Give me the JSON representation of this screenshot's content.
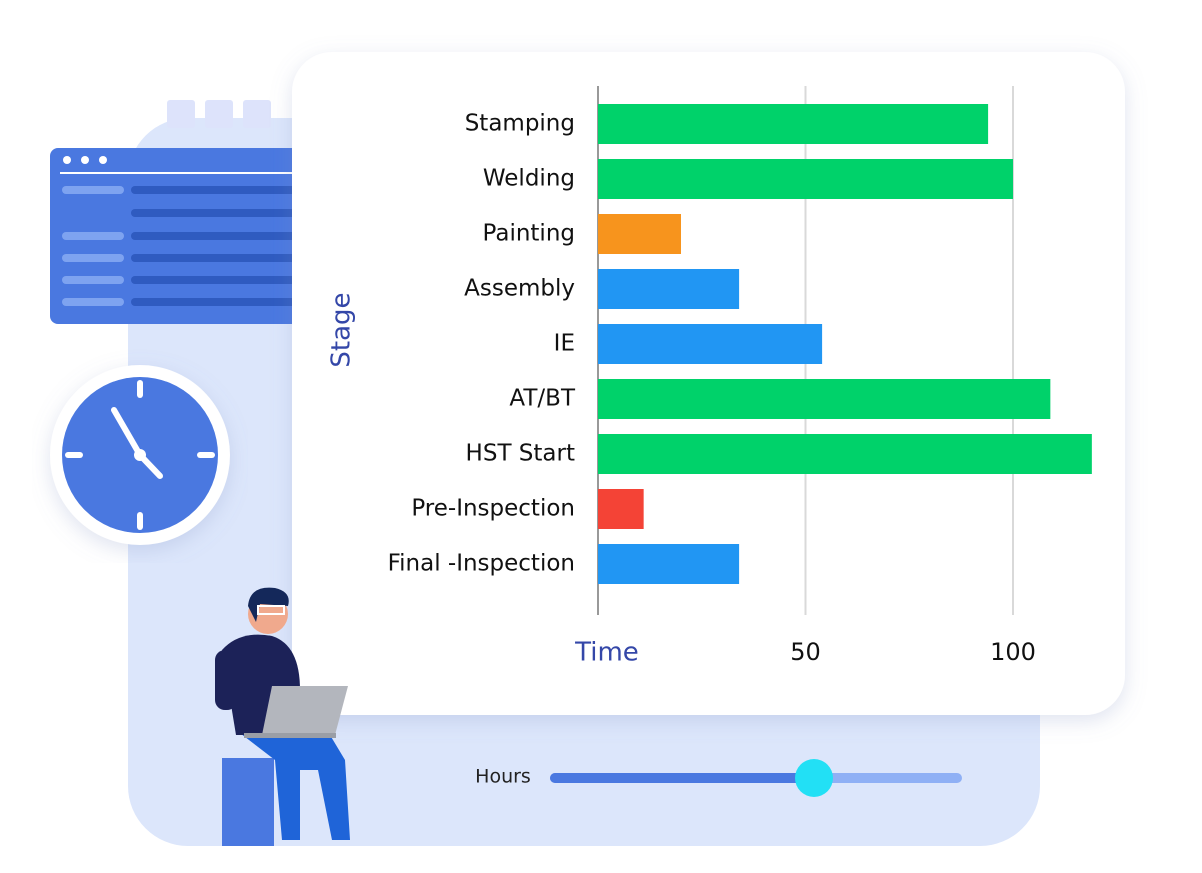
{
  "chart_data": {
    "type": "bar",
    "orientation": "horizontal",
    "categories": [
      "Stamping",
      "Welding",
      "Painting",
      "Assembly",
      "IE",
      "AT/BT",
      "HST Start",
      "Pre-Inspection",
      "Final -Inspection"
    ],
    "values": [
      94,
      100,
      20,
      34,
      54,
      109,
      119,
      11,
      34
    ],
    "colors": [
      "#00d26a",
      "#00d26a",
      "#f7941d",
      "#2196f3",
      "#2196f3",
      "#00d26a",
      "#00d26a",
      "#f44336",
      "#2196f3"
    ],
    "xlim": [
      0,
      120
    ],
    "xticks": [
      50,
      100
    ],
    "grid": true,
    "xlabel": "Time",
    "ylabel": "Stage",
    "slider_label": "Hours"
  }
}
